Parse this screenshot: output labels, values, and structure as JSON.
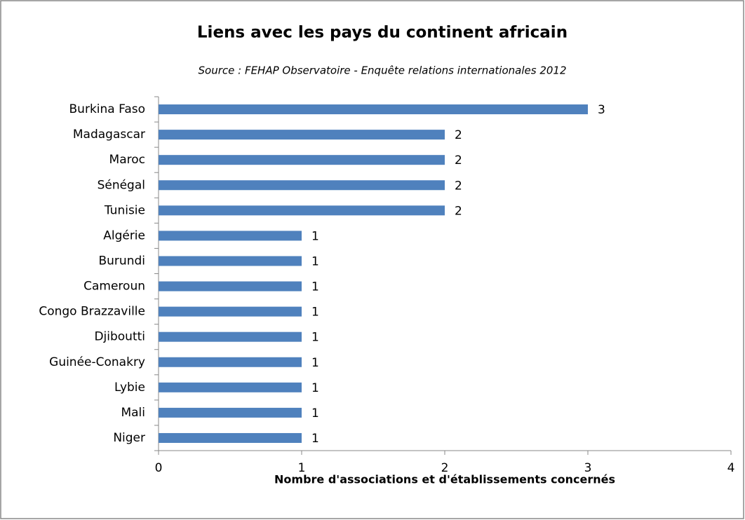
{
  "chart_data": {
    "type": "barh",
    "title": "Liens avec les pays du continent africain",
    "subtitle": "Source : FEHAP Observatoire - Enquête relations internationales 2012",
    "x_label": "Nombre d'associations et d'établissements concernés",
    "categories": [
      "Burkina Faso",
      "Madagascar",
      "Maroc",
      "Sénégal",
      "Tunisie",
      "Algérie",
      "Burundi",
      "Cameroun",
      "Congo Brazzaville",
      "Djiboutti",
      "Guinée-Conakry",
      "Lybie",
      "Mali",
      "Niger"
    ],
    "values": [
      3,
      2,
      2,
      2,
      2,
      1,
      1,
      1,
      1,
      1,
      1,
      1,
      1,
      1
    ],
    "color": "#4f81bd",
    "xlim": [
      0,
      4
    ],
    "xticks": [
      0,
      1,
      2,
      3,
      4
    ],
    "grid": false
  }
}
